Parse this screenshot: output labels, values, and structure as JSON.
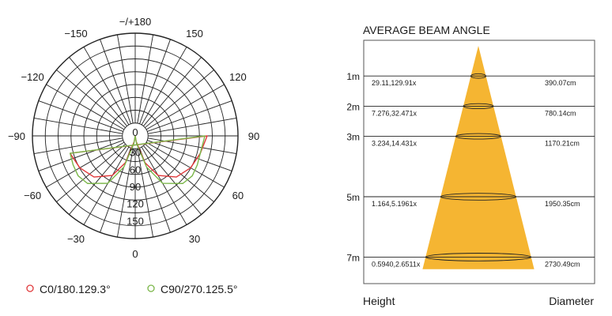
{
  "chart_data": [
    {
      "type": "polar",
      "angle_labels": [
        {
          "label": "−/+180",
          "angle": 180
        },
        {
          "label": "−150",
          "angle": -150
        },
        {
          "label": "150",
          "angle": 150
        },
        {
          "label": "−120",
          "angle": -120
        },
        {
          "label": "120",
          "angle": 120
        },
        {
          "label": "−90",
          "angle": -90
        },
        {
          "label": "90",
          "angle": 90
        },
        {
          "label": "−60",
          "angle": -60
        },
        {
          "label": "60",
          "angle": 60
        },
        {
          "label": "−30",
          "angle": -30
        },
        {
          "label": "30",
          "angle": 30
        },
        {
          "label": "0",
          "angle": 0
        }
      ],
      "radial_labels": [
        "0",
        "30",
        "60",
        "90",
        "120",
        "150"
      ],
      "radial_values": [
        0,
        30,
        60,
        90,
        120,
        150
      ],
      "radial_max": 180,
      "ring_count": 8,
      "spoke_step_deg": 10,
      "series": [
        {
          "name": "C0/180.129.3°",
          "color": "#e0383a",
          "points": [
            [
              0,
              0
            ],
            [
              10,
              10
            ],
            [
              20,
              50
            ],
            [
              30,
              80
            ],
            [
              45,
              102
            ],
            [
              60,
              112
            ],
            [
              75,
              118
            ],
            [
              90,
              126
            ]
          ]
        },
        {
          "name": "C90/270.125.5°",
          "color": "#7ab648",
          "points": [
            [
              0,
              0
            ],
            [
              10,
              14
            ],
            [
              20,
              58
            ],
            [
              30,
              96
            ],
            [
              45,
              118
            ],
            [
              55,
              122
            ],
            [
              65,
              120
            ],
            [
              75,
              118
            ],
            [
              90,
              122
            ]
          ]
        }
      ]
    },
    {
      "type": "beam_angle",
      "title": "AVERAGE BEAM ANGLE",
      "xlabel_left": "Height",
      "xlabel_right": "Diameter",
      "fill_color": "#f5b532",
      "rows": [
        {
          "height": 1,
          "height_label": "1m",
          "left_text": "29.11,129.91x",
          "right_text": "390.07cm"
        },
        {
          "height": 2,
          "height_label": "2m",
          "left_text": "7.276,32.471x",
          "right_text": "780.14cm"
        },
        {
          "height": 3,
          "height_label": "3m",
          "left_text": "3.234,14.431x",
          "right_text": "1170.21cm"
        },
        {
          "height": 5,
          "height_label": "5m",
          "left_text": "1.164,5.1961x",
          "right_text": "1950.35cm"
        },
        {
          "height": 7,
          "height_label": "7m",
          "left_text": "0.5940,2.6511x",
          "right_text": "2730.49cm"
        }
      ]
    }
  ]
}
